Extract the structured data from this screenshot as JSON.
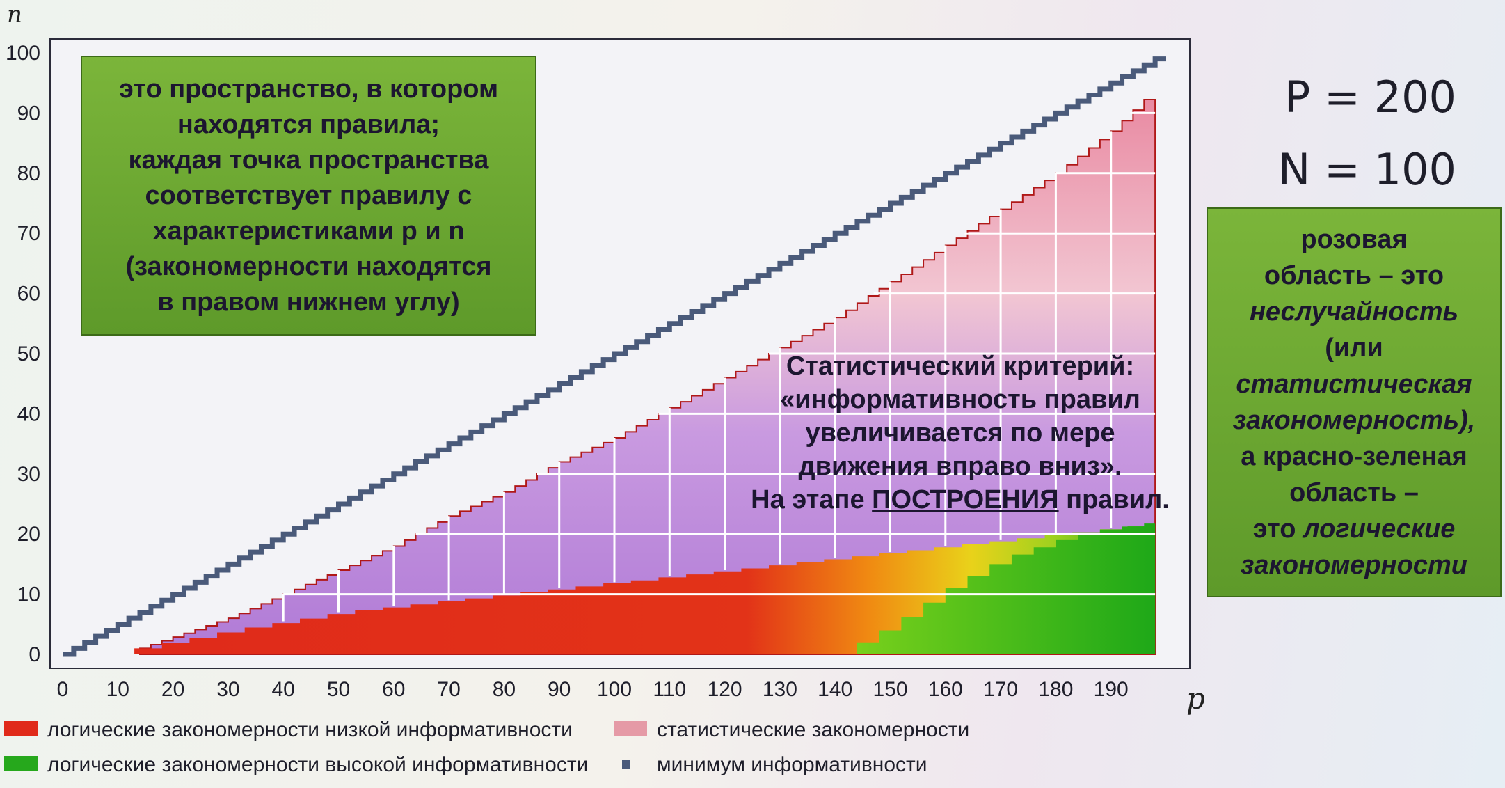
{
  "chart_data": {
    "type": "area",
    "xlabel": "p",
    "ylabel": "n",
    "xlim": [
      0,
      200
    ],
    "ylim": [
      0,
      100
    ],
    "x_ticks": [
      0,
      10,
      20,
      30,
      40,
      50,
      60,
      70,
      80,
      90,
      100,
      110,
      120,
      130,
      140,
      150,
      160,
      170,
      180,
      190
    ],
    "y_ticks": [
      0,
      10,
      20,
      30,
      40,
      50,
      60,
      70,
      80,
      90,
      100
    ],
    "P": 200,
    "N": 100,
    "series": [
      {
        "name": "минимум информативности",
        "role": "diagonal",
        "x": [
          0,
          198
        ],
        "y": [
          0,
          99
        ]
      },
      {
        "name": "статистические закономерности",
        "role": "upper_boundary",
        "x": [
          14,
          30,
          40,
          50,
          60,
          70,
          80,
          90,
          100,
          110,
          120,
          130,
          140,
          150,
          160,
          170,
          180,
          190,
          198
        ],
        "y": [
          1,
          6,
          10,
          14,
          18,
          23,
          27,
          32,
          36,
          41,
          46,
          51,
          56,
          62,
          68,
          74,
          80,
          87,
          94
        ]
      },
      {
        "name": "логические закономерности низкой информативности",
        "role": "red_zone_top",
        "x": [
          13,
          30,
          50,
          70,
          90,
          110,
          130,
          150,
          170,
          190,
          198
        ],
        "y": [
          1,
          4,
          7,
          9,
          11,
          13,
          15,
          17,
          19,
          21,
          22
        ]
      },
      {
        "name": "логические закономерности высокой информативности",
        "role": "green_zone_top",
        "x": [
          140,
          150,
          160,
          170,
          180,
          190,
          198
        ],
        "y": [
          0,
          5,
          11,
          16,
          19,
          21,
          22
        ]
      }
    ],
    "legend": [
      {
        "label": "логические закономерности низкой информативности",
        "color": "#e02a1a"
      },
      {
        "label": "логические закономерности высокой информативности",
        "color": "#26a81c"
      },
      {
        "label": "статистические закономерности",
        "color": "#e59aa6"
      },
      {
        "label": "минимум информативности",
        "color": "#4a5a7a"
      }
    ],
    "legend_position": "bottom"
  },
  "texts": {
    "left_box": [
      "это пространство, в котором",
      "находятся правила;",
      "каждая точка пространства",
      "соответствует правилу с",
      "характеристиками p и n",
      "(закономерности находятся",
      "в правом нижнем углу)"
    ],
    "criterion": [
      "Статистический критерий:",
      "«информативность правил",
      "увеличивается по мере",
      "движения вправо вниз».",
      "На этапе ",
      "ПОСТРОЕНИЯ",
      " правил."
    ],
    "params": [
      "P = 200",
      "N = 100"
    ],
    "right_box": [
      "розовая",
      "область – это",
      "неслучайность",
      "(или",
      "статистическая",
      "закономерность),",
      "а красно-зеленая",
      "область –",
      "это ",
      "логические",
      "закономерности"
    ]
  }
}
